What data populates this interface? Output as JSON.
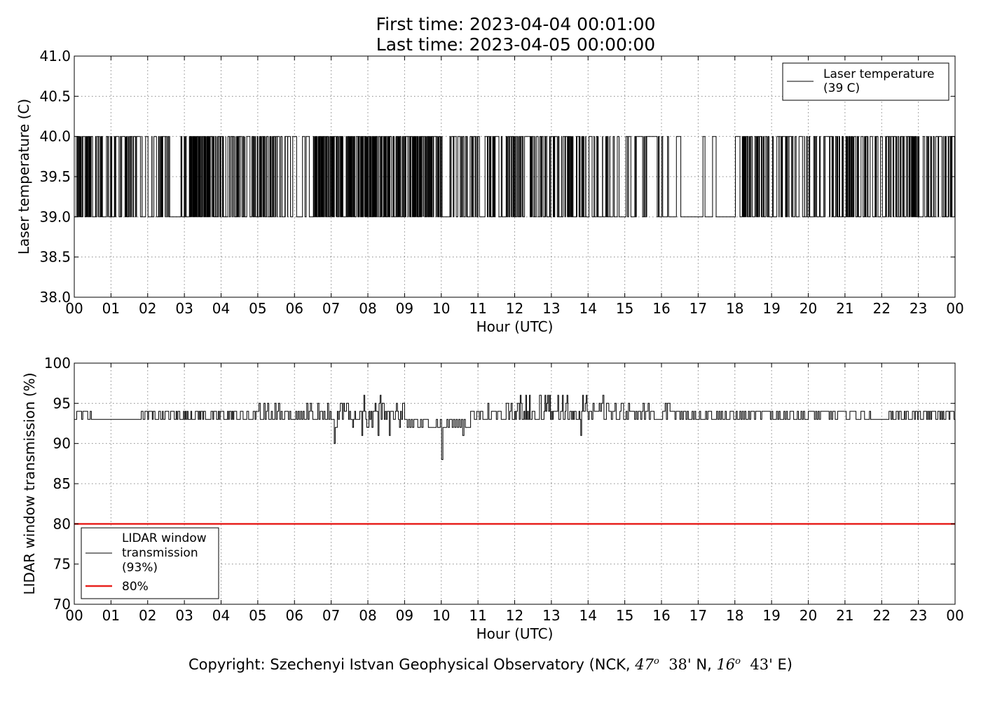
{
  "title": {
    "line1": "First time: 2023-04-04 00:01:00",
    "line2": "Last time: 2023-04-05 00:00:00"
  },
  "copyright": {
    "prefix": "Copyright: Szechenyi Istvan Geophysical Observatory (NCK, ",
    "lat_deg": "47",
    "deg_sym": "o",
    "lat_min": "38'",
    "lat_hemi": " N, ",
    "lon_deg": "16",
    "lon_min": "43'",
    "suffix": " E)"
  },
  "chart_data": [
    {
      "type": "line",
      "xlabel": "Hour (UTC)",
      "ylabel": "Laser temperature (C)",
      "xlim": [
        0,
        24
      ],
      "ylim": [
        38.0,
        41.0
      ],
      "x_tick_labels": [
        "00",
        "01",
        "02",
        "03",
        "04",
        "05",
        "06",
        "07",
        "08",
        "09",
        "10",
        "11",
        "12",
        "13",
        "14",
        "15",
        "16",
        "17",
        "18",
        "19",
        "20",
        "21",
        "22",
        "23",
        "00"
      ],
      "y_ticks": [
        "38.0",
        "38.5",
        "39.0",
        "39.5",
        "40.0",
        "40.5",
        "41.0"
      ],
      "grid": true,
      "legend_position": "upper right",
      "series": [
        {
          "name": "Laser temperature\n(39 C)",
          "legend_lines": [
            "Laser temperature",
            "(39 C)"
          ],
          "color": "#000000",
          "description": "Rapid toggling between 39.0 and 40.0; denser clusters 03-04, 07-10; sparse 16.6-17.2 and 17.5-18.0",
          "levels": [
            39.0,
            40.0
          ],
          "switch_density_per_hour": [
            {
              "start": 0.0,
              "end": 0.5,
              "density": 60
            },
            {
              "start": 0.5,
              "end": 1.0,
              "density": 30
            },
            {
              "start": 1.0,
              "end": 2.0,
              "density": 36
            },
            {
              "start": 2.0,
              "end": 2.6,
              "density": 34
            },
            {
              "start": 2.6,
              "end": 2.9,
              "density": 0
            },
            {
              "start": 2.9,
              "end": 4.0,
              "density": 90
            },
            {
              "start": 4.0,
              "end": 5.5,
              "density": 44
            },
            {
              "start": 5.5,
              "end": 6.0,
              "density": 24
            },
            {
              "start": 6.0,
              "end": 6.5,
              "density": 10
            },
            {
              "start": 6.5,
              "end": 10.0,
              "density": 80
            },
            {
              "start": 10.0,
              "end": 12.0,
              "density": 32
            },
            {
              "start": 12.0,
              "end": 14.0,
              "density": 40
            },
            {
              "start": 14.0,
              "end": 15.0,
              "density": 20
            },
            {
              "start": 15.0,
              "end": 16.0,
              "density": 16
            },
            {
              "start": 16.0,
              "end": 16.6,
              "density": 10
            },
            {
              "start": 16.6,
              "end": 17.1,
              "density": 0
            },
            {
              "start": 17.1,
              "end": 17.6,
              "density": 8
            },
            {
              "start": 17.6,
              "end": 18.2,
              "density": 4
            },
            {
              "start": 18.2,
              "end": 19.0,
              "density": 60
            },
            {
              "start": 19.0,
              "end": 20.0,
              "density": 28
            },
            {
              "start": 20.0,
              "end": 21.0,
              "density": 30
            },
            {
              "start": 21.0,
              "end": 24.0,
              "density": 40
            }
          ]
        }
      ]
    },
    {
      "type": "line",
      "xlabel": "Hour (UTC)",
      "ylabel": "LIDAR window transmission (%)",
      "xlim": [
        0,
        24
      ],
      "ylim": [
        70,
        100
      ],
      "x_tick_labels": [
        "00",
        "01",
        "02",
        "03",
        "04",
        "05",
        "06",
        "07",
        "08",
        "09",
        "10",
        "11",
        "12",
        "13",
        "14",
        "15",
        "16",
        "17",
        "18",
        "19",
        "20",
        "21",
        "22",
        "23",
        "00"
      ],
      "y_ticks": [
        "70",
        "75",
        "80",
        "85",
        "90",
        "95",
        "100"
      ],
      "grid": true,
      "legend_position": "lower left",
      "series": [
        {
          "name": "LIDAR window\ntransmission\n(93%)",
          "legend_lines": [
            "LIDAR window",
            "transmission",
            "(93%)"
          ],
          "color": "#000000",
          "description": "Fluctuates mostly between 93 and 94 %, more spread 07-10 and 12-15",
          "segments": [
            {
              "start": 0.0,
              "end": 0.5,
              "low": 93,
              "high": 94,
              "density": 30
            },
            {
              "start": 0.5,
              "end": 1.8,
              "low": 93,
              "high": 93,
              "density": 0
            },
            {
              "start": 1.8,
              "end": 5.0,
              "low": 93,
              "high": 94,
              "density": 40
            },
            {
              "start": 5.0,
              "end": 7.0,
              "low": 93,
              "high": 95,
              "density": 30
            },
            {
              "start": 7.0,
              "end": 9.0,
              "low": 92,
              "high": 95,
              "density": 36
            },
            {
              "start": 9.0,
              "end": 10.8,
              "low": 92,
              "high": 93,
              "density": 28
            },
            {
              "start": 10.8,
              "end": 12.0,
              "low": 93,
              "high": 95,
              "density": 30
            },
            {
              "start": 12.0,
              "end": 14.0,
              "low": 93,
              "high": 96,
              "density": 40
            },
            {
              "start": 14.0,
              "end": 16.5,
              "low": 93,
              "high": 95,
              "density": 30
            },
            {
              "start": 16.5,
              "end": 21.8,
              "low": 93,
              "high": 94,
              "density": 30
            },
            {
              "start": 21.8,
              "end": 22.2,
              "low": 93,
              "high": 93,
              "density": 0
            },
            {
              "start": 22.2,
              "end": 24.0,
              "low": 93,
              "high": 94,
              "density": 36
            }
          ],
          "spikes": [
            {
              "x": 7.1,
              "y": 90
            },
            {
              "x": 7.85,
              "y": 91
            },
            {
              "x": 8.3,
              "y": 91
            },
            {
              "x": 8.6,
              "y": 91
            },
            {
              "x": 10.03,
              "y": 88
            },
            {
              "x": 10.6,
              "y": 91
            },
            {
              "x": 13.8,
              "y": 91
            },
            {
              "x": 7.9,
              "y": 96
            },
            {
              "x": 8.35,
              "y": 96
            },
            {
              "x": 12.7,
              "y": 96
            },
            {
              "x": 14.4,
              "y": 96
            }
          ]
        },
        {
          "name": "80%",
          "legend_lines": [
            "80%"
          ],
          "color": "#e8221f",
          "constant": 80
        }
      ]
    }
  ]
}
